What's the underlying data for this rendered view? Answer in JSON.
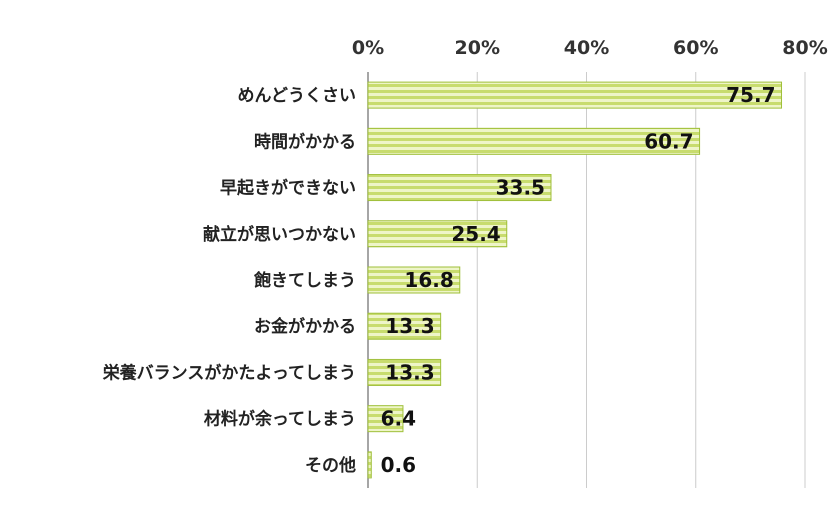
{
  "chart_data": {
    "type": "bar",
    "orientation": "horizontal",
    "categories": [
      "めんどうくさい",
      "時間がかかる",
      "早起きができない",
      "献立が思いつかない",
      "飽きてしまう",
      "お金がかかる",
      "栄養バランスがかたよってしまう",
      "材料が余ってしまう",
      "その他"
    ],
    "values": [
      75.7,
      60.7,
      33.5,
      25.4,
      16.8,
      13.3,
      13.3,
      6.4,
      0.6
    ],
    "value_labels": [
      "75.7",
      "60.7",
      "33.5",
      "25.4",
      "16.8",
      "13.3",
      "13.3",
      "6.4",
      "0.6"
    ],
    "xlim": [
      0,
      80
    ],
    "ticks": [
      0,
      20,
      40,
      60,
      80
    ],
    "tick_labels": [
      "0%",
      "20%",
      "40%",
      "60%",
      "80%"
    ],
    "axis_position": "top",
    "grid": true,
    "bar_color": "#c8dc6e",
    "bar_stripe_color": "#eef5c8",
    "bar_border_color": "#9fbf3a",
    "grid_color": "#cccccc"
  }
}
